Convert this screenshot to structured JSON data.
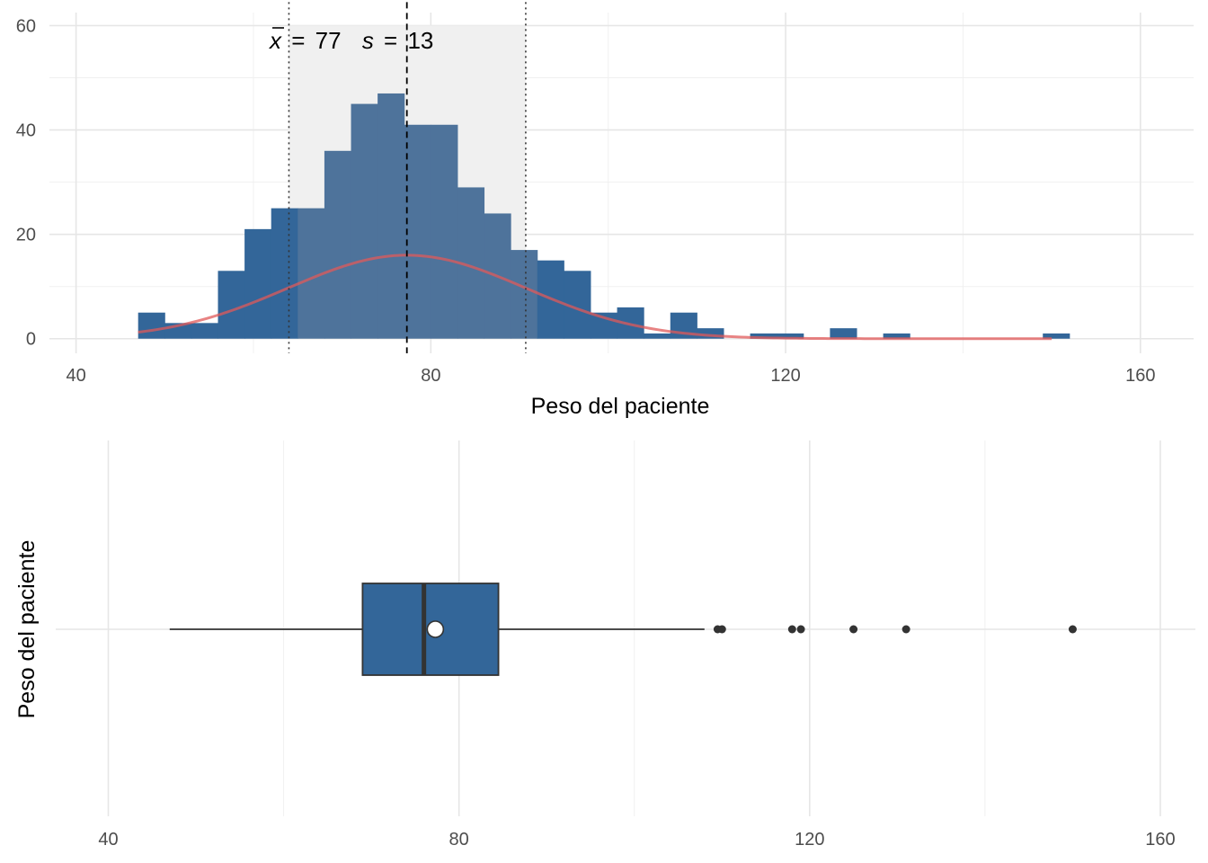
{
  "chart_data": [
    {
      "type": "bar",
      "subtype": "histogram",
      "xlabel": "Peso del paciente",
      "ylabel": "",
      "xlim": [
        37,
        166
      ],
      "ylim": [
        -2.8,
        62.5
      ],
      "x_ticks": [
        "40",
        "80",
        "120",
        "160"
      ],
      "y_ticks": [
        "0",
        "20",
        "40",
        "60"
      ],
      "grid": true,
      "bin_width": 3,
      "bins": [
        {
          "start": 47,
          "end": 50,
          "count": 5
        },
        {
          "start": 50,
          "end": 53,
          "count": 3
        },
        {
          "start": 53,
          "end": 56,
          "count": 3
        },
        {
          "start": 56,
          "end": 59,
          "count": 13
        },
        {
          "start": 59,
          "end": 62,
          "count": 21
        },
        {
          "start": 62,
          "end": 65,
          "count": 25
        },
        {
          "start": 65,
          "end": 68,
          "count": 25
        },
        {
          "start": 68,
          "end": 71,
          "count": 36
        },
        {
          "start": 71,
          "end": 74,
          "count": 45
        },
        {
          "start": 74,
          "end": 77,
          "count": 47
        },
        {
          "start": 77,
          "end": 80,
          "count": 41
        },
        {
          "start": 80,
          "end": 83,
          "count": 41
        },
        {
          "start": 83,
          "end": 86,
          "count": 29
        },
        {
          "start": 86,
          "end": 89,
          "count": 24
        },
        {
          "start": 89,
          "end": 92,
          "count": 17
        },
        {
          "start": 92,
          "end": 95,
          "count": 15
        },
        {
          "start": 95,
          "end": 98,
          "count": 13
        },
        {
          "start": 98,
          "end": 101,
          "count": 5
        },
        {
          "start": 101,
          "end": 104,
          "count": 6
        },
        {
          "start": 104,
          "end": 107,
          "count": 1
        },
        {
          "start": 107,
          "end": 110,
          "count": 5
        },
        {
          "start": 110,
          "end": 113,
          "count": 2
        },
        {
          "start": 113,
          "end": 116,
          "count": 0
        },
        {
          "start": 116,
          "end": 119,
          "count": 1
        },
        {
          "start": 119,
          "end": 122,
          "count": 1
        },
        {
          "start": 122,
          "end": 125,
          "count": 0
        },
        {
          "start": 125,
          "end": 128,
          "count": 2
        },
        {
          "start": 128,
          "end": 131,
          "count": 0
        },
        {
          "start": 131,
          "end": 134,
          "count": 1
        },
        {
          "start": 134,
          "end": 137,
          "count": 0
        },
        {
          "start": 137,
          "end": 140,
          "count": 0
        },
        {
          "start": 140,
          "end": 143,
          "count": 0
        },
        {
          "start": 143,
          "end": 146,
          "count": 0
        },
        {
          "start": 146,
          "end": 149,
          "count": 0
        },
        {
          "start": 149,
          "end": 152,
          "count": 1
        }
      ],
      "normal_curve": {
        "mean": 77.3,
        "sd": 13.4,
        "x_range": [
          47,
          150
        ],
        "peak": 16,
        "color": "#e05a5a"
      },
      "mean_line": 77.3,
      "sd_band": [
        64,
        90.7
      ],
      "annotation": {
        "mean_symbol": "x",
        "mean_value": "77",
        "sd_symbol": "s",
        "sd_value": "13",
        "equals": "="
      },
      "colors": {
        "bar": "#336699",
        "bar_in_band": "#4e739b",
        "band": "#f0f0f0"
      }
    },
    {
      "type": "boxplot",
      "orientation": "horizontal",
      "ylabel": "Peso del paciente",
      "xlabel": "",
      "xlim": [
        34,
        164
      ],
      "x_ticks": [
        "40",
        "80",
        "120",
        "160"
      ],
      "grid": true,
      "whisker_low": 47,
      "q1": 69,
      "median": 76,
      "mean": 77.3,
      "q3": 84.5,
      "whisker_high": 108,
      "outliers": [
        109.5,
        110,
        118,
        119,
        125,
        131,
        150
      ],
      "colors": {
        "box": "#336699",
        "outline": "#333333"
      }
    }
  ]
}
